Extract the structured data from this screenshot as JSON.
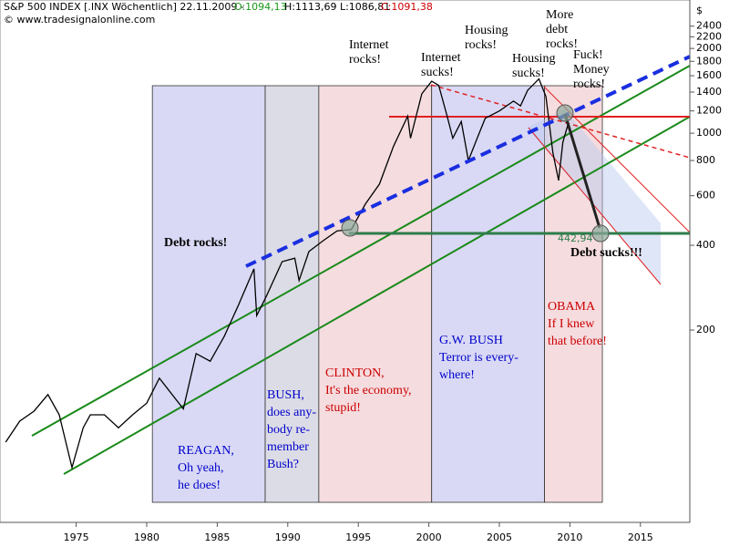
{
  "header": {
    "title": "S&P 500 INDEX [.INX Wöchentlich] 22.11.2009 -",
    "open": "O:1094,13",
    "high_low": "H:1113,69 L:1086,81",
    "close": "C:1091,38",
    "copyright": "© www.tradesignalonline.com",
    "unit": "$"
  },
  "chart_data": {
    "type": "line",
    "log_y": true,
    "color": "#000000",
    "x": [
      1970.0,
      1971.0,
      1972.0,
      1973.0,
      1973.8,
      1974.7,
      1975.5,
      1976.0,
      1977.0,
      1978.0,
      1979.0,
      1980.0,
      1980.9,
      1982.6,
      1983.5,
      1984.5,
      1985.5,
      1986.5,
      1987.6,
      1987.8,
      1988.5,
      1989.6,
      1990.5,
      1990.8,
      1991.5,
      1992.5,
      1993.5,
      1994.5,
      1995.5,
      1996.5,
      1997.5,
      1998.5,
      1998.7,
      1999.5,
      2000.2,
      2000.7,
      2001.3,
      2001.7,
      2002.3,
      2002.8,
      2003.5,
      2004.0,
      2005.0,
      2006.0,
      2006.5,
      2007.0,
      2007.8,
      2008.3,
      2008.8,
      2009.2,
      2009.5,
      2009.9
    ],
    "values": [
      80,
      95,
      103,
      118,
      100,
      65,
      90,
      100,
      100,
      90,
      100,
      110,
      135,
      105,
      165,
      155,
      190,
      245,
      330,
      225,
      265,
      350,
      360,
      300,
      380,
      415,
      450,
      455,
      560,
      660,
      900,
      1150,
      960,
      1380,
      1530,
      1480,
      1150,
      960,
      1100,
      800,
      980,
      1130,
      1200,
      1300,
      1250,
      1420,
      1560,
      1350,
      850,
      680,
      930,
      1091
    ],
    "xlim": [
      1969.6,
      2018.5
    ],
    "xticks": [
      1975,
      1980,
      1985,
      1990,
      1995,
      2000,
      2005,
      2010,
      2015
    ],
    "ylim": [
      41.5,
      2800
    ],
    "yticks": [
      200,
      400,
      600,
      800,
      1000,
      1200,
      1400,
      1600,
      1800,
      2000,
      2200,
      2400
    ],
    "periods": [
      {
        "start": 1980.4,
        "end": 1988.4,
        "color": "#d9d9f5",
        "text_color": "#0000cc",
        "lines": [
          "REAGAN,",
          "Oh yeah,",
          "he does!"
        ]
      },
      {
        "start": 1988.4,
        "end": 1992.2,
        "color": "#dcdce6",
        "text_color": "#0000cc",
        "lines": [
          "BUSH,",
          "does any-",
          "body re-",
          "member",
          "Bush?"
        ]
      },
      {
        "start": 1992.2,
        "end": 2000.2,
        "color": "#f5dcdf",
        "text_color": "#cc0000",
        "lines": [
          "CLINTON,",
          "It's the economy,",
          "stupid!"
        ]
      },
      {
        "start": 2000.2,
        "end": 2008.2,
        "color": "#d9d9f5",
        "text_color": "#0000cc",
        "lines": [
          "G.W. BUSH",
          "Terror is every-",
          "where!"
        ]
      },
      {
        "start": 2008.2,
        "end": 2012.3,
        "color": "#f5dcdf",
        "text_color": "#cc0000",
        "lines": [
          "OBAMA",
          "If I knew",
          "that before!"
        ]
      }
    ],
    "annotations": [
      {
        "lines": [
          "Debt rocks!"
        ]
      },
      {
        "lines": [
          "Internet",
          "rocks!"
        ]
      },
      {
        "lines": [
          "Internet",
          "sucks!"
        ]
      },
      {
        "lines": [
          "Housing",
          "rocks!"
        ]
      },
      {
        "lines": [
          "Housing",
          "sucks!"
        ]
      },
      {
        "lines": [
          "More",
          "debt",
          "rocks!"
        ]
      },
      {
        "lines": [
          "Fuck!",
          "Money",
          "rocks!"
        ]
      },
      {
        "lines": [
          "Debt sucks!!!"
        ]
      },
      {
        "lines": [
          "442,94"
        ]
      }
    ]
  }
}
